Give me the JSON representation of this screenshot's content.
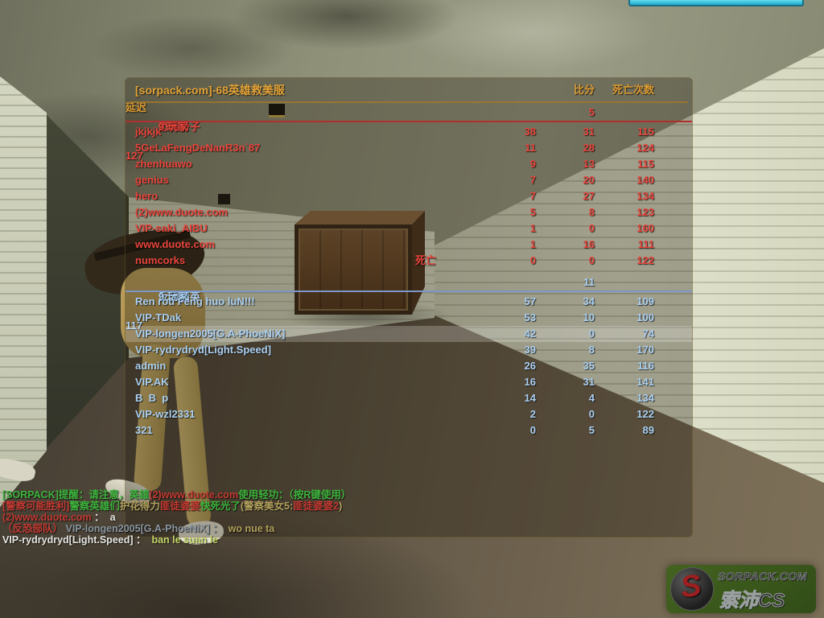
{
  "hud": {
    "timer_bar": {
      "color": "#3ec3de"
    },
    "watermark": {
      "site": "SORPACK.COM",
      "brand": "索沛CS",
      "emblem_letter": "S"
    }
  },
  "scoreboard": {
    "title": "[sorpack.com]-68英雄救美服",
    "columns": {
      "score": "比分",
      "deaths": "死亡次数",
      "latency": "延迟"
    },
    "dead_label": "死亡",
    "accent_color": "#dc9a32",
    "teams": [
      {
        "name": "恐怖份子",
        "separator": "-",
        "player_count": "9 玩家",
        "score": "5",
        "latency": "127",
        "theme": "t-red",
        "color": "#e8453c",
        "players": [
          {
            "name": "jkjkjk",
            "status": "",
            "score": "38",
            "deaths": "31",
            "latency": "115",
            "highlight": false
          },
          {
            "name": "5GeLaFengDeNanR3n`87",
            "status": "",
            "score": "11",
            "deaths": "28",
            "latency": "124",
            "highlight": false
          },
          {
            "name": "zhenhuawo",
            "status": "",
            "score": "9",
            "deaths": "13",
            "latency": "115",
            "highlight": false
          },
          {
            "name": "genius",
            "status": "",
            "score": "7",
            "deaths": "20",
            "latency": "140",
            "highlight": false
          },
          {
            "name": "hero",
            "status": "",
            "score": "7",
            "deaths": "27",
            "latency": "134",
            "highlight": false
          },
          {
            "name": "(2)www.duote.com",
            "status": "",
            "score": "5",
            "deaths": "8",
            "latency": "123",
            "highlight": false
          },
          {
            "name": "VIP-saki_AIBU",
            "status": "",
            "score": "1",
            "deaths": "0",
            "latency": "160",
            "highlight": false
          },
          {
            "name": "www.duote.com",
            "status": "",
            "score": "1",
            "deaths": "16",
            "latency": "111",
            "highlight": false
          },
          {
            "name": "numcorks",
            "status": "死亡",
            "score": "0",
            "deaths": "0",
            "latency": "122",
            "highlight": false
          }
        ]
      },
      {
        "name": "反恐精英",
        "separator": "-",
        "player_count": "9 玩家",
        "score": "11",
        "latency": "117",
        "theme": "t-blue",
        "color": "#abd0f2",
        "players": [
          {
            "name": "Ren rou Feng huo luN!!!",
            "status": "",
            "score": "57",
            "deaths": "34",
            "latency": "109",
            "highlight": false
          },
          {
            "name": "VIP-TDak",
            "status": "",
            "score": "53",
            "deaths": "10",
            "latency": "100",
            "highlight": false
          },
          {
            "name": "VIP-longen2005[G.A-PhoeNiX]",
            "status": "",
            "score": "42",
            "deaths": "0",
            "latency": "74",
            "highlight": true
          },
          {
            "name": "VIP-rydrydryd[Light.Speed]",
            "status": "",
            "score": "39",
            "deaths": "8",
            "latency": "170",
            "highlight": false
          },
          {
            "name": "admin",
            "status": "",
            "score": "26",
            "deaths": "35",
            "latency": "116",
            "highlight": false
          },
          {
            "name": "VIP.AK",
            "status": "",
            "score": "16",
            "deaths": "31",
            "latency": "141",
            "highlight": false
          },
          {
            "name": "B  B  p",
            "status": "",
            "score": "14",
            "deaths": "4",
            "latency": "134",
            "highlight": false
          },
          {
            "name": "VIP-wzl2331",
            "status": "",
            "score": "2",
            "deaths": "0",
            "latency": "122",
            "highlight": false
          },
          {
            "name": "321",
            "status": "",
            "score": "0",
            "deaths": "5",
            "latency": "89",
            "highlight": false
          }
        ]
      }
    ]
  },
  "chat": {
    "lines": [
      {
        "segments": [
          {
            "text": "[SORPACK]提醒：请注意，英雄",
            "color": "green"
          },
          {
            "text": "(2)www.duote.com",
            "color": "red"
          },
          {
            "text": "使用轻功：（按R键使用）",
            "color": "green"
          }
        ]
      },
      {
        "segments": [
          {
            "text": "[警察可能胜利]",
            "color": "red"
          },
          {
            "text": "警察英雄们",
            "color": "green"
          },
          {
            "text": "护花得力",
            "color": "tan"
          },
          {
            "text": "匪徒婆婆",
            "color": "red"
          },
          {
            "text": "快死光了",
            "color": "green"
          },
          {
            "text": "(警察美女5:",
            "color": "tan"
          },
          {
            "text": "匪徒婆婆2",
            "color": "red"
          },
          {
            "text": ")",
            "color": "tan"
          }
        ]
      },
      {
        "segments": [
          {
            "text": "(2)www.duote.com",
            "color": "red"
          },
          {
            "text": " ：  a",
            "color": "white"
          }
        ]
      },
      {
        "segments": [
          {
            "text": "（反恐部队）",
            "color": "red"
          },
          {
            "text": " VIP-longen2005[G.A-PhoeNiX] ： ",
            "color": "slate"
          },
          {
            "text": " wo nue ta",
            "color": "tan"
          }
        ]
      },
      {
        "segments": [
          {
            "text": "VIP-rydrydryd[Light.Speed] ： ",
            "color": "white"
          },
          {
            "text": " ban le suan le",
            "color": "lime"
          }
        ]
      }
    ]
  }
}
